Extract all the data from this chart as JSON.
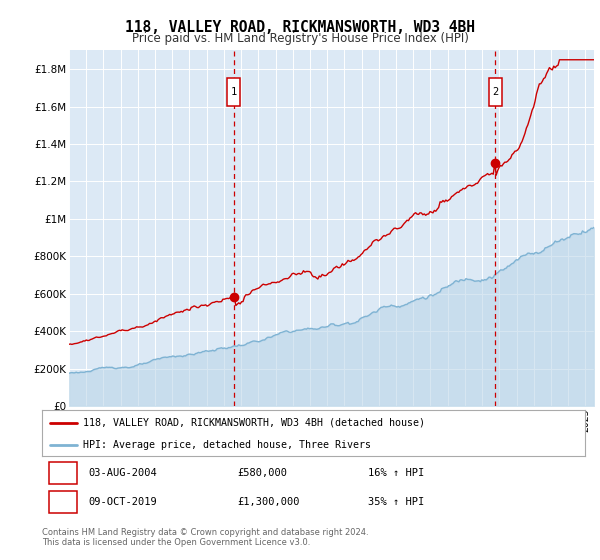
{
  "title": "118, VALLEY ROAD, RICKMANSWORTH, WD3 4BH",
  "subtitle": "Price paid vs. HM Land Registry's House Price Index (HPI)",
  "legend_line1": "118, VALLEY ROAD, RICKMANSWORTH, WD3 4BH (detached house)",
  "legend_line2": "HPI: Average price, detached house, Three Rivers",
  "marker1_date": "03-AUG-2004",
  "marker1_price": "£580,000",
  "marker1_hpi": "16% ↑ HPI",
  "marker1_x": 2004.58,
  "marker1_y": 580000,
  "marker2_date": "09-OCT-2019",
  "marker2_price": "£1,300,000",
  "marker2_hpi": "35% ↑ HPI",
  "marker2_x": 2019.77,
  "marker2_y": 1300000,
  "background_color": "#dce9f5",
  "red_color": "#cc0000",
  "blue_color": "#7fb3d3",
  "blue_fill_color": "#b8d4e8",
  "footer": "Contains HM Land Registry data © Crown copyright and database right 2024.\nThis data is licensed under the Open Government Licence v3.0.",
  "ylim": [
    0,
    1900000
  ],
  "yticks": [
    0,
    200000,
    400000,
    600000,
    800000,
    1000000,
    1200000,
    1400000,
    1600000,
    1800000
  ],
  "ytick_labels": [
    "£0",
    "£200K",
    "£400K",
    "£600K",
    "£800K",
    "£1M",
    "£1.2M",
    "£1.4M",
    "£1.6M",
    "£1.8M"
  ],
  "xmin": 1995,
  "xmax": 2025.5
}
